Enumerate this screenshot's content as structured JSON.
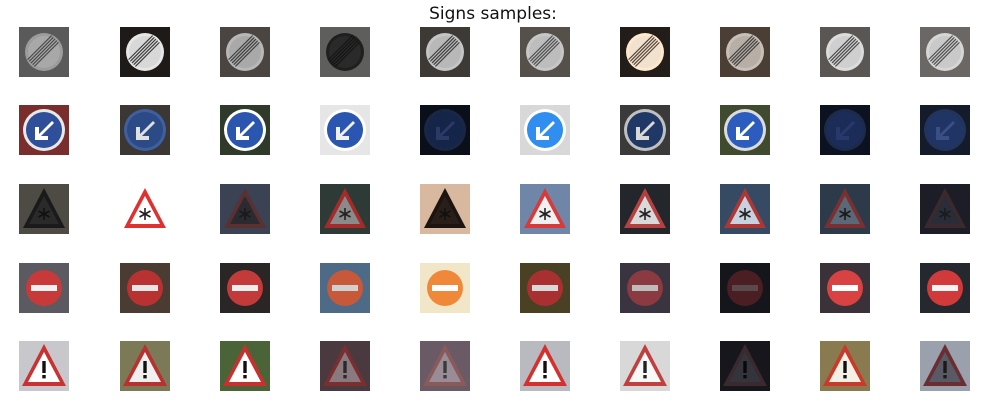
{
  "title": "Signs samples:",
  "rows": [
    {
      "sign": "end-of-restriction",
      "samples": [
        {
          "bg": "#5a5a5a",
          "ring": "#9c9c9c",
          "fill": "#a8a8a8",
          "bar": "#3a3a3a"
        },
        {
          "bg": "#1d1a18",
          "ring": "#e6e6e6",
          "fill": "#d8d8d8",
          "bar": "#222222"
        },
        {
          "bg": "#4a4540",
          "ring": "#b8b8b8",
          "fill": "#a9a9a9",
          "bar": "#2e2e2e"
        },
        {
          "bg": "#5e5f5c",
          "ring": "#1f1f1f",
          "fill": "#2a2a2a",
          "bar": "#111111"
        },
        {
          "bg": "#3d3a36",
          "ring": "#c5c5c5",
          "fill": "#b8b8b8",
          "bar": "#2b2b2b"
        },
        {
          "bg": "#56504a",
          "ring": "#c7c7c7",
          "fill": "#bdbdbd",
          "bar": "#3b3b3b"
        },
        {
          "bg": "#221d19",
          "ring": "#ffe8cc",
          "fill": "#f1e2d0",
          "bar": "#3a2a20"
        },
        {
          "bg": "#4b3e35",
          "ring": "#c8c0b8",
          "fill": "#b7aea6",
          "bar": "#2e2e2e"
        },
        {
          "bg": "#595654",
          "ring": "#dcdcdc",
          "fill": "#cfcfcf",
          "bar": "#333333"
        },
        {
          "bg": "#6a6764",
          "ring": "#d6d6d6",
          "fill": "#c9c9c9",
          "bar": "#3c3c3c"
        }
      ]
    },
    {
      "sign": "keep-left",
      "samples": [
        {
          "bg": "#7a2d2d",
          "ring": "#e8e8e8",
          "fill": "#2f4f9a",
          "arrow": "#ffffff"
        },
        {
          "bg": "#3a3734",
          "ring": "#3f5f9f",
          "fill": "#2c4a86",
          "arrow": "#e0e0e0"
        },
        {
          "bg": "#2f3a2a",
          "ring": "#ffffff",
          "fill": "#2b56b0",
          "arrow": "#ffffff"
        },
        {
          "bg": "#e6e6e6",
          "ring": "#ffffff",
          "fill": "#2a56b2",
          "arrow": "#f0f0f0"
        },
        {
          "bg": "#0b0f1a",
          "ring": "#1a2744",
          "fill": "#15254a",
          "arrow": "#2a3a64"
        },
        {
          "bg": "#d8d8d8",
          "ring": "#ffffff",
          "fill": "#2f8ef0",
          "arrow": "#ffffff"
        },
        {
          "bg": "#3a3a3a",
          "ring": "#c0c0c0",
          "fill": "#1f3866",
          "arrow": "#d8d8d8"
        },
        {
          "bg": "#3f4a2f",
          "ring": "#dcdcdc",
          "fill": "#2c5dbe",
          "arrow": "#ffffff"
        },
        {
          "bg": "#0d1220",
          "ring": "#1c2a4c",
          "fill": "#1b2c58",
          "arrow": "#27386a"
        },
        {
          "bg": "#141b2a",
          "ring": "#23345c",
          "fill": "#203466",
          "arrow": "#3a4f84"
        }
      ]
    },
    {
      "sign": "snow-warning",
      "samples": [
        {
          "bg": "#4e4a44",
          "ring": "#1a1a1a",
          "fill": "#2a2a2a",
          "icon": "#111111"
        },
        {
          "bg": "#ffffff",
          "ring": "#e03030",
          "fill": "#ffffff",
          "icon": "#222222"
        },
        {
          "bg": "#3a4254",
          "ring": "#5a3030",
          "fill": "#2a2a30",
          "icon": "#1a1a1a"
        },
        {
          "bg": "#2e3a36",
          "ring": "#a52a2a",
          "fill": "#8a8a8a",
          "icon": "#222222"
        },
        {
          "bg": "#d9b8a0",
          "ring": "#1c1410",
          "fill": "#2a1f18",
          "icon": "#111111"
        },
        {
          "bg": "#6f86a8",
          "ring": "#d83a3a",
          "fill": "#f0f0f0",
          "icon": "#222222"
        },
        {
          "bg": "#23262a",
          "ring": "#b44040",
          "fill": "#d9d9d9",
          "icon": "#222222"
        },
        {
          "bg": "#364a64",
          "ring": "#b03636",
          "fill": "#c8d2de",
          "icon": "#222222"
        },
        {
          "bg": "#2d3a4a",
          "ring": "#7a3030",
          "fill": "#5a6878",
          "icon": "#1a1a1a"
        },
        {
          "bg": "#1c1d26",
          "ring": "#3a2a2e",
          "fill": "#2a2d38",
          "icon": "#1a1a20"
        }
      ]
    },
    {
      "sign": "no-entry",
      "samples": [
        {
          "bg": "#5a5a60",
          "fill": "#c83a3a",
          "bar": "#f0f0f0"
        },
        {
          "bg": "#4a3c32",
          "fill": "#b83232",
          "bar": "#e6e6e6"
        },
        {
          "bg": "#2a2626",
          "fill": "#c23a3a",
          "bar": "#eeeeee"
        },
        {
          "bg": "#4d6a86",
          "fill": "#c8583a",
          "bar": "#d0d0d0"
        },
        {
          "bg": "#f2e6c8",
          "fill": "#f0883a",
          "bar": "#ffffff"
        },
        {
          "bg": "#4a4024",
          "fill": "#a83030",
          "bar": "#d8d8d8"
        },
        {
          "bg": "#3a3440",
          "fill": "#8a3a40",
          "bar": "#bcbcbc"
        },
        {
          "bg": "#15151c",
          "fill": "#4a1e22",
          "bar": "#5a4a4c"
        },
        {
          "bg": "#3a3238",
          "fill": "#d84242",
          "bar": "#ffffff"
        },
        {
          "bg": "#262830",
          "fill": "#d03a3a",
          "bar": "#f4f4f4"
        }
      ]
    },
    {
      "sign": "general-caution",
      "samples": [
        {
          "bg": "#c8c8cc",
          "ring": "#c83232",
          "fill": "#ffffff",
          "icon": "#111111"
        },
        {
          "bg": "#7c7a56",
          "ring": "#b83030",
          "fill": "#efefef",
          "icon": "#111111"
        },
        {
          "bg": "#4a6438",
          "ring": "#c83030",
          "fill": "#ffffff",
          "icon": "#111111"
        },
        {
          "bg": "#4a3a40",
          "ring": "#7a2e30",
          "fill": "#8a7a80",
          "icon": "#2a2a2a"
        },
        {
          "bg": "#6a5a66",
          "ring": "#8a5a5a",
          "fill": "#9a8c96",
          "icon": "#3a3a3a"
        },
        {
          "bg": "#b8bac0",
          "ring": "#d43030",
          "fill": "#ffffff",
          "icon": "#111111"
        },
        {
          "bg": "#d8d8d8",
          "ring": "#c04040",
          "fill": "#f8f8f8",
          "icon": "#222222"
        },
        {
          "bg": "#16161c",
          "ring": "#3a2a2e",
          "fill": "#34343c",
          "icon": "#0a0a0a"
        },
        {
          "bg": "#8a7a50",
          "ring": "#c83a2a",
          "fill": "#f4f0e6",
          "icon": "#111111"
        },
        {
          "bg": "#9aa0ac",
          "ring": "#6a2e32",
          "fill": "#5a5a66",
          "icon": "#1a1a1a"
        }
      ]
    }
  ]
}
